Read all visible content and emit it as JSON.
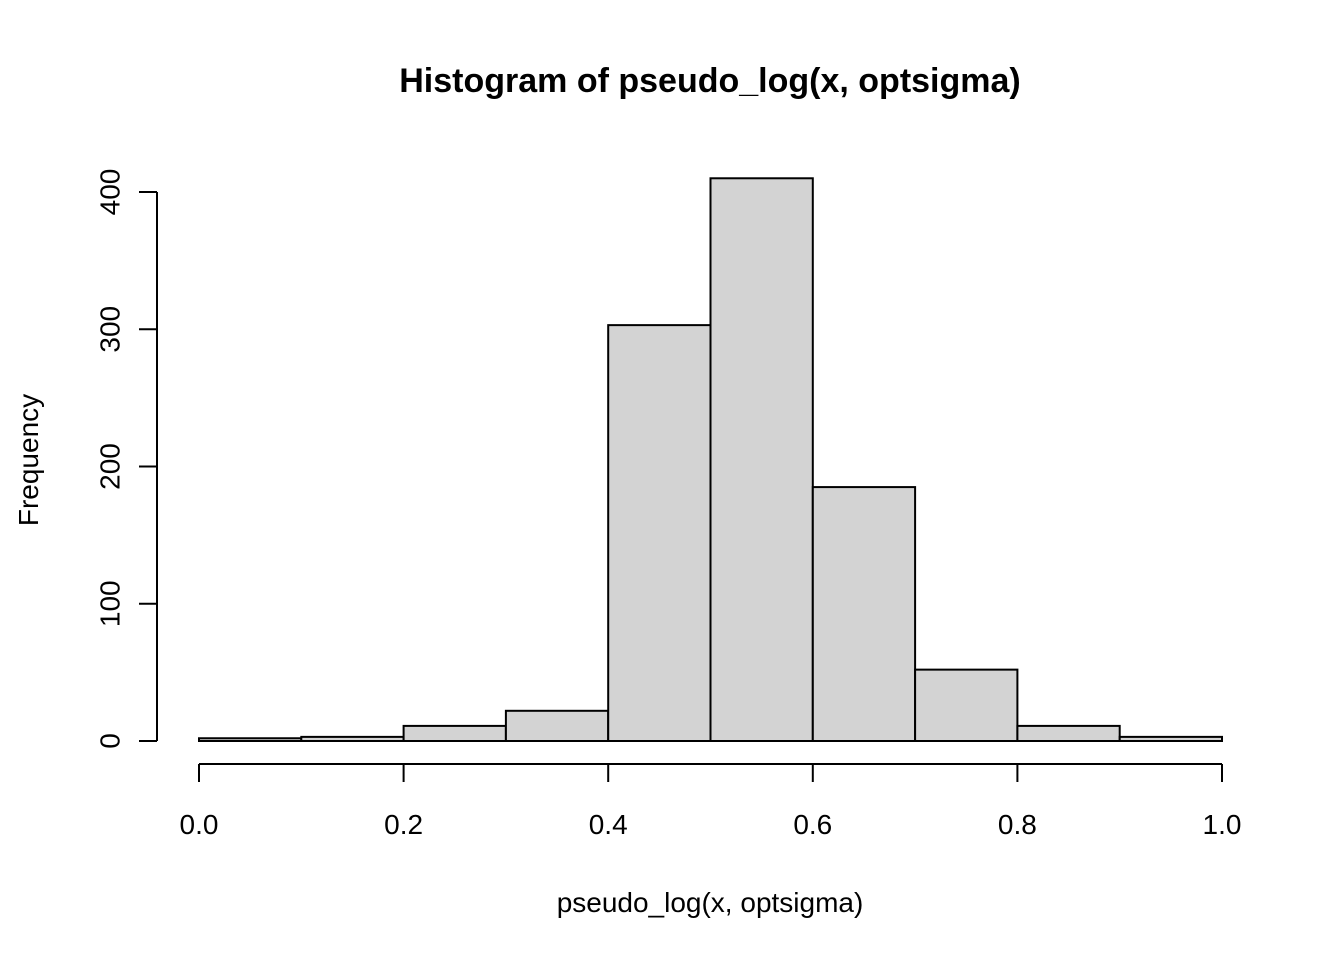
{
  "chart_data": {
    "type": "bar",
    "subtype": "histogram",
    "title": "Histogram of pseudo_log(x, optsigma)",
    "xlabel": "pseudo_log(x, optsigma)",
    "ylabel": "Frequency",
    "bins": [
      {
        "start": 0.0,
        "end": 0.1,
        "count": 2
      },
      {
        "start": 0.1,
        "end": 0.2,
        "count": 3
      },
      {
        "start": 0.2,
        "end": 0.3,
        "count": 11
      },
      {
        "start": 0.3,
        "end": 0.4,
        "count": 22
      },
      {
        "start": 0.4,
        "end": 0.5,
        "count": 303
      },
      {
        "start": 0.5,
        "end": 0.6,
        "count": 410
      },
      {
        "start": 0.6,
        "end": 0.7,
        "count": 185
      },
      {
        "start": 0.7,
        "end": 0.8,
        "count": 52
      },
      {
        "start": 0.8,
        "end": 0.9,
        "count": 11
      },
      {
        "start": 0.9,
        "end": 1.0,
        "count": 3
      }
    ],
    "x_ticks": [
      "0.0",
      "0.2",
      "0.4",
      "0.6",
      "0.8",
      "1.0"
    ],
    "y_ticks": [
      "0",
      "100",
      "200",
      "300",
      "400"
    ],
    "xlim": [
      0,
      1
    ],
    "ylim": [
      0,
      400
    ],
    "grid": false,
    "bar_color": "#d3d3d3",
    "edge_color": "#000000"
  }
}
